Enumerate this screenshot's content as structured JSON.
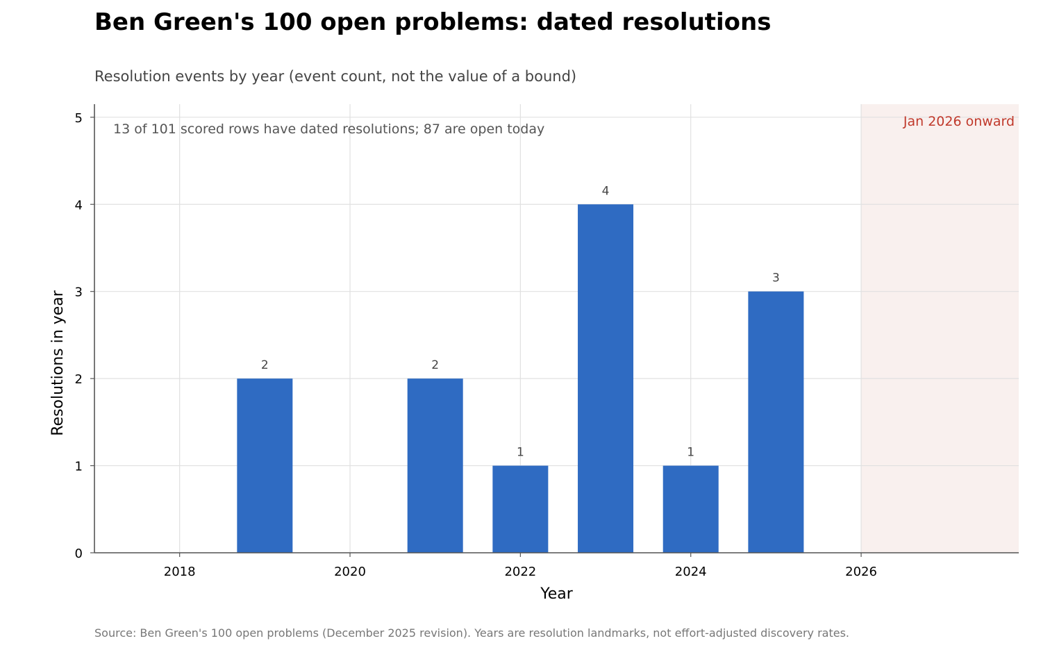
{
  "chart_data": {
    "type": "bar",
    "title": "Ben Green's 100 open problems: dated resolutions",
    "subtitle": "Resolution events by year (event count, not the value of a bound)",
    "xlabel": "Year",
    "ylabel": "Resolutions in year",
    "x": [
      2019,
      2021,
      2022,
      2023,
      2024,
      2025
    ],
    "values": [
      2,
      2,
      1,
      4,
      1,
      3
    ],
    "data_labels": [
      "2",
      "2",
      "1",
      "4",
      "1",
      "3"
    ],
    "xlim": [
      2017,
      2027.85
    ],
    "ylim": [
      0,
      5.15
    ],
    "x_ticks": [
      2018,
      2020,
      2022,
      2024,
      2026
    ],
    "x_tick_labels": [
      "2018",
      "2020",
      "2022",
      "2024",
      "2026"
    ],
    "y_ticks": [
      0,
      1,
      2,
      3,
      4,
      5
    ],
    "y_tick_labels": [
      "0",
      "1",
      "2",
      "3",
      "4",
      "5"
    ],
    "grid": true,
    "annotation": "13 of 101 scored rows have dated resolutions; 87 are open today",
    "shaded_region": {
      "x_start": 2026,
      "label": "Jan 2026 onward"
    },
    "source": "Source: Ben Green's 100 open problems (December 2025 revision). Years are resolution landmarks, not effort-adjusted discovery rates.",
    "colors": {
      "bar": "#2f6bc2",
      "shaded_region": "#f9f0ee",
      "shaded_label": "#c0392b",
      "grid": "#e0e0e0",
      "axis": "#555555"
    }
  }
}
